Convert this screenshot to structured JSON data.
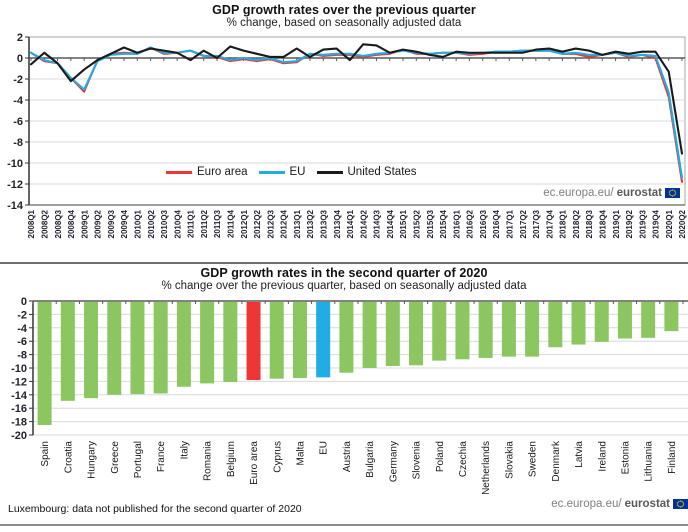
{
  "watermark": {
    "text": "ec.europa.eu/",
    "bold": "eurostat"
  },
  "footnote": "Luxembourg: data not published for the second quarter of 2020",
  "colors": {
    "euro_area": "#ef3636",
    "eu": "#1fade4",
    "united_states": "#1a1a1a",
    "bar_green": "#8cc661",
    "grid": "#d9d9d9",
    "axis_dark": "#595959",
    "plot_border": "#a6a6a6",
    "flag_blue": "#003399",
    "flag_star": "#ffcc00"
  },
  "chart_data": [
    {
      "type": "line",
      "title": "GDP growth rates over the previous quarter",
      "subtitle": "% change, based on seasonally adjusted data",
      "ylim": [
        -14,
        2
      ],
      "ytick_step": 2,
      "grid": "horizontal",
      "legend_position": "inside-bottom-center",
      "x": [
        "2008Q1",
        "2008Q2",
        "2008Q3",
        "2008Q4",
        "2009Q1",
        "2009Q2",
        "2009Q3",
        "2009Q4",
        "2010Q1",
        "2010Q2",
        "2010Q3",
        "2010Q4",
        "2011Q1",
        "2011Q2",
        "2011Q3",
        "2011Q4",
        "2012Q1",
        "2012Q2",
        "2012Q3",
        "2012Q4",
        "2013Q1",
        "2013Q2",
        "2013Q3",
        "2013Q4",
        "2014Q1",
        "2014Q2",
        "2014Q3",
        "2014Q4",
        "2015Q1",
        "2015Q2",
        "2015Q3",
        "2015Q4",
        "2016Q1",
        "2016Q2",
        "2016Q3",
        "2016Q4",
        "2017Q1",
        "2017Q2",
        "2017Q3",
        "2017Q4",
        "2018Q1",
        "2018Q2",
        "2018Q3",
        "2018Q4",
        "2019Q1",
        "2019Q2",
        "2019Q3",
        "2019Q4",
        "2020Q1",
        "2020Q2"
      ],
      "series": [
        {
          "name": "Euro area",
          "color": "#ef3636",
          "values": [
            0.5,
            -0.3,
            -0.5,
            -1.9,
            -3.2,
            -0.2,
            0.4,
            0.5,
            0.4,
            1.0,
            0.4,
            0.5,
            0.7,
            0.2,
            0.1,
            -0.3,
            -0.1,
            -0.3,
            -0.1,
            -0.5,
            -0.4,
            0.4,
            0.2,
            0.3,
            0.3,
            0.1,
            0.3,
            0.4,
            0.8,
            0.4,
            0.4,
            0.5,
            0.5,
            0.3,
            0.4,
            0.6,
            0.6,
            0.7,
            0.7,
            0.7,
            0.4,
            0.4,
            0.1,
            0.3,
            0.5,
            0.1,
            0.3,
            0.0,
            -3.7,
            -11.8
          ]
        },
        {
          "name": "EU",
          "color": "#1fade4",
          "values": [
            0.5,
            -0.2,
            -0.5,
            -1.9,
            -3.0,
            -0.3,
            0.3,
            0.4,
            0.4,
            1.0,
            0.5,
            0.5,
            0.7,
            0.2,
            0.2,
            -0.2,
            0.0,
            -0.2,
            0.0,
            -0.4,
            -0.3,
            0.4,
            0.3,
            0.4,
            0.4,
            0.2,
            0.4,
            0.5,
            0.7,
            0.5,
            0.4,
            0.5,
            0.5,
            0.4,
            0.5,
            0.6,
            0.6,
            0.7,
            0.7,
            0.7,
            0.4,
            0.5,
            0.3,
            0.3,
            0.5,
            0.2,
            0.3,
            0.2,
            -3.3,
            -11.4
          ]
        },
        {
          "name": "United States",
          "color": "#1a1a1a",
          "values": [
            -0.6,
            0.5,
            -0.5,
            -2.2,
            -1.1,
            -0.2,
            0.4,
            1.0,
            0.5,
            0.9,
            0.7,
            0.5,
            -0.2,
            0.7,
            0.0,
            1.1,
            0.7,
            0.4,
            0.1,
            0.1,
            0.9,
            0.1,
            0.8,
            0.9,
            -0.2,
            1.3,
            1.2,
            0.5,
            0.8,
            0.6,
            0.3,
            0.1,
            0.6,
            0.5,
            0.5,
            0.5,
            0.5,
            0.5,
            0.8,
            0.9,
            0.6,
            0.9,
            0.7,
            0.3,
            0.6,
            0.4,
            0.6,
            0.6,
            -1.3,
            -9.1
          ]
        }
      ]
    },
    {
      "type": "bar",
      "title": "GDP growth rates in the second quarter of 2020",
      "subtitle": "% change over the previous quarter, based on seasonally adjusted data",
      "ylim": [
        -20,
        0
      ],
      "ytick_step": 2,
      "grid": "horizontal",
      "categories": [
        "Spain",
        "Croatia",
        "Hungary",
        "Greece",
        "Portugal",
        "France",
        "Italy",
        "Romania",
        "Belgium",
        "Euro area",
        "Cyprus",
        "Malta",
        "EU",
        "Austria",
        "Bulgaria",
        "Germany",
        "Slovenia",
        "Poland",
        "Czechia",
        "Netherlands",
        "Slovakia",
        "Sweden",
        "Denmark",
        "Latvia",
        "Ireland",
        "Estonia",
        "Lithuania",
        "Finland"
      ],
      "values": [
        -18.5,
        -14.9,
        -14.5,
        -14.0,
        -13.9,
        -13.8,
        -12.8,
        -12.3,
        -12.1,
        -11.8,
        -11.6,
        -11.5,
        -11.4,
        -10.7,
        -10.0,
        -9.7,
        -9.6,
        -8.9,
        -8.7,
        -8.5,
        -8.3,
        -8.3,
        -6.9,
        -6.5,
        -6.1,
        -5.6,
        -5.5,
        -4.5
      ],
      "bar_colors": {
        "default": "#8cc661",
        "Euro area": "#ef3636",
        "EU": "#1fade4"
      }
    }
  ]
}
